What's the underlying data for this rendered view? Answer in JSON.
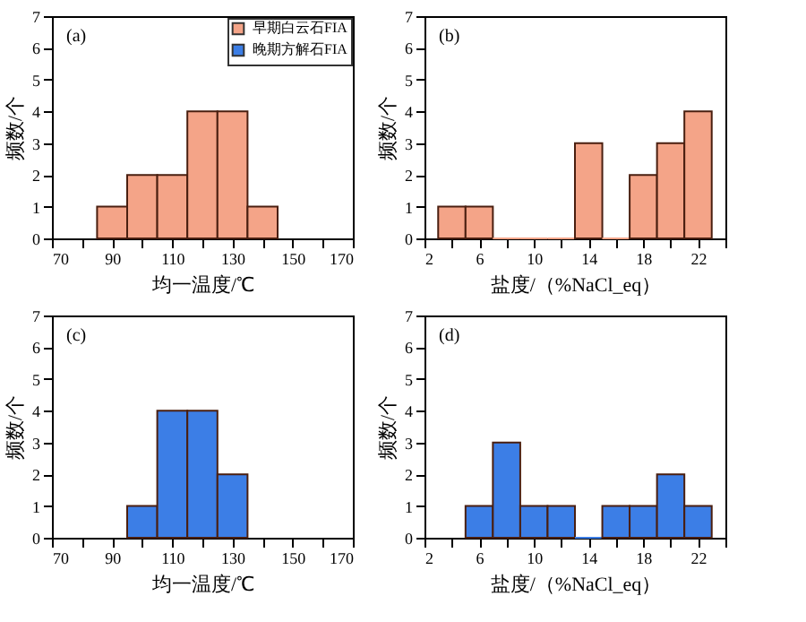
{
  "chart_data": [
    {
      "type": "histogram",
      "xlabel": "均一温度/℃",
      "ylabel": "频数/个",
      "annotations": [
        "(a)"
      ],
      "legend": "top right",
      "bins": [
        85,
        95,
        105,
        115,
        125,
        135,
        145
      ],
      "series": [
        {
          "name": "早期白云石FIA",
          "color": "#f4a488",
          "values": [
            1,
            2,
            2,
            4,
            4,
            1
          ]
        }
      ],
      "xlim": [
        70,
        170
      ],
      "xticks": [
        70,
        {
          "value": 80,
          "label": null
        },
        90,
        {
          "value": 100,
          "label": null
        },
        110,
        {
          "value": 120,
          "label": null
        },
        130,
        {
          "value": 140,
          "label": null
        },
        150,
        {
          "value": 160,
          "label": null
        },
        170
      ],
      "ylim": [
        0,
        7
      ],
      "yticks": [
        0,
        1,
        2,
        3,
        4,
        5,
        6,
        7
      ]
    },
    {
      "type": "histogram",
      "xlabel": "盐度/（%NaCl_eq）",
      "ylabel": "频数/个",
      "annotations": [
        "(b)"
      ],
      "bins": [
        3,
        5,
        7,
        9,
        11,
        13,
        15,
        17,
        19,
        21,
        23
      ],
      "series": [
        {
          "color": "#f4a488",
          "values": [
            1,
            1,
            0,
            0,
            0,
            3,
            0,
            2,
            3,
            4
          ]
        }
      ],
      "xlim": [
        2,
        24
      ],
      "xticks": [
        2,
        {
          "value": 4,
          "label": null
        },
        6,
        {
          "value": 8,
          "label": null
        },
        10,
        {
          "value": 12,
          "label": null
        },
        14,
        {
          "value": 16,
          "label": null
        },
        18,
        {
          "value": 20,
          "label": null
        },
        22,
        {
          "value": 24,
          "label": null
        }
      ],
      "ylim": [
        0,
        7
      ],
      "yticks": [
        0,
        1,
        2,
        3,
        4,
        5,
        6,
        7
      ]
    },
    {
      "type": "histogram",
      "xlabel": "均一温度/℃",
      "ylabel": "频数/个",
      "annotations": [
        "(c)"
      ],
      "bins": [
        95,
        105,
        115,
        125,
        135
      ],
      "series": [
        {
          "name": "晚期方解石FIA",
          "color": "#3c7ee6",
          "values": [
            1,
            4,
            4,
            2
          ]
        }
      ],
      "xlim": [
        70,
        170
      ],
      "xticks": [
        70,
        {
          "value": 80,
          "label": null
        },
        90,
        {
          "value": 100,
          "label": null
        },
        110,
        {
          "value": 120,
          "label": null
        },
        130,
        {
          "value": 140,
          "label": null
        },
        150,
        {
          "value": 160,
          "label": null
        },
        170
      ],
      "ylim": [
        0,
        7
      ],
      "yticks": [
        0,
        1,
        2,
        3,
        4,
        5,
        6,
        7
      ]
    },
    {
      "type": "histogram",
      "xlabel": "盐度/（%NaCl_eq）",
      "ylabel": "频数/个",
      "annotations": [
        "(d)"
      ],
      "bins": [
        5,
        7,
        9,
        11,
        13,
        15,
        17,
        19,
        21,
        23
      ],
      "series": [
        {
          "color": "#3c7ee6",
          "values": [
            1,
            3,
            1,
            1,
            0,
            1,
            1,
            2,
            1
          ]
        }
      ],
      "xlim": [
        2,
        24
      ],
      "xticks": [
        2,
        {
          "value": 4,
          "label": null
        },
        6,
        {
          "value": 8,
          "label": null
        },
        10,
        {
          "value": 12,
          "label": null
        },
        14,
        {
          "value": 16,
          "label": null
        },
        18,
        {
          "value": 20,
          "label": null
        },
        22,
        {
          "value": 24,
          "label": null
        }
      ],
      "ylim": [
        0,
        7
      ],
      "yticks": [
        0,
        1,
        2,
        3,
        4,
        5,
        6,
        7
      ]
    }
  ]
}
